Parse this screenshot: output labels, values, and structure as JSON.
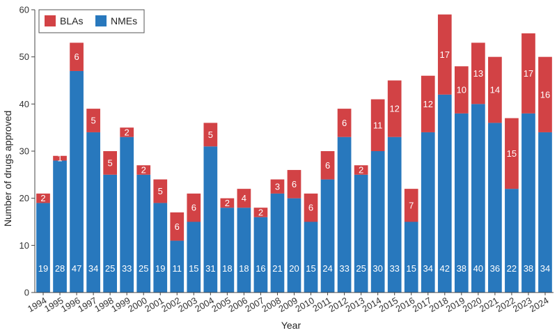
{
  "chart_data": {
    "type": "bar",
    "stacked": true,
    "title": "",
    "xlabel": "Year",
    "ylabel": "Number of drugs approved",
    "ylim": [
      0,
      60
    ],
    "yticks": [
      0,
      10,
      20,
      30,
      40,
      50,
      60
    ],
    "grid": false,
    "legend_position": "top-left",
    "categories": [
      "1994",
      "1995",
      "1996",
      "1997",
      "1998",
      "1999",
      "2000",
      "2001",
      "2002",
      "2003",
      "2004",
      "2005",
      "2006",
      "2007",
      "2008",
      "2009",
      "2010",
      "2011",
      "2012",
      "2013",
      "2014",
      "2015",
      "2016",
      "2017",
      "2018",
      "2019",
      "2020",
      "2021",
      "2022",
      "2023",
      "2024"
    ],
    "series": [
      {
        "name": "NMEs",
        "color": "#2878bd",
        "values": [
          19,
          28,
          47,
          34,
          25,
          33,
          25,
          19,
          11,
          15,
          31,
          18,
          18,
          16,
          21,
          20,
          15,
          24,
          33,
          25,
          30,
          33,
          15,
          34,
          42,
          38,
          40,
          36,
          22,
          38,
          34
        ]
      },
      {
        "name": "BLAs",
        "color": "#d24245",
        "values": [
          2,
          1,
          6,
          5,
          5,
          2,
          2,
          5,
          6,
          6,
          5,
          2,
          4,
          2,
          3,
          6,
          6,
          6,
          6,
          2,
          11,
          12,
          7,
          12,
          17,
          10,
          13,
          14,
          15,
          17,
          16
        ]
      }
    ],
    "legend": [
      "BLAs",
      "NMEs"
    ]
  }
}
